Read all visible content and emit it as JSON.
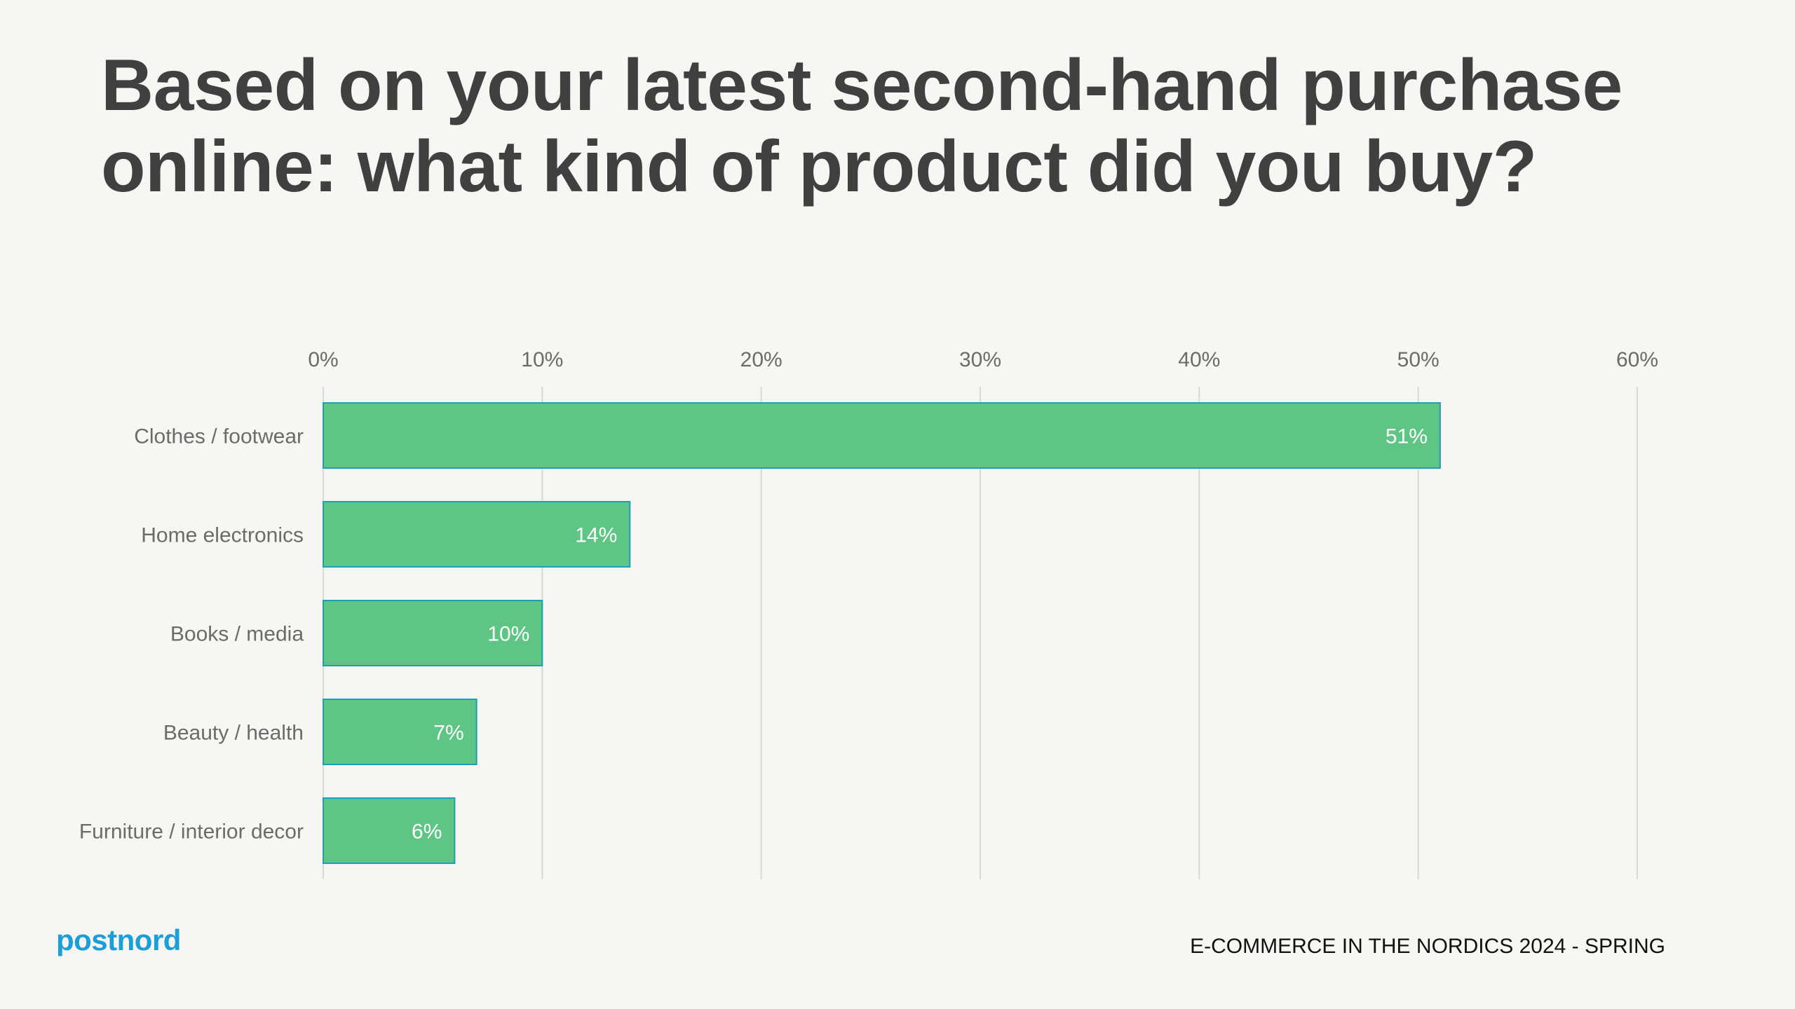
{
  "slide": {
    "title": "Based on your latest second-hand purchase online: what kind of product did you buy?"
  },
  "footer": {
    "brand": "postnord",
    "report": "E-COMMERCE IN THE NORDICS 2024 - SPRING"
  },
  "colors": {
    "bar_fill": "#5EC584",
    "bar_stroke": "#1A9FB5",
    "gridline": "#D9D9D9",
    "axis_text": "#6B6B6B",
    "label_text": "#FFFFFF",
    "brand": "#1A9FD9"
  },
  "chart_data": {
    "type": "bar",
    "orientation": "horizontal",
    "categories": [
      "Clothes / footwear",
      "Home electronics",
      "Books / media",
      "Beauty / health",
      "Furniture / interior decor"
    ],
    "values": [
      51,
      14,
      10,
      7,
      6
    ],
    "data_labels": [
      "51%",
      "14%",
      "10%",
      "7%",
      "6%"
    ],
    "xlim": [
      0,
      60
    ],
    "xticks": [
      0,
      10,
      20,
      30,
      40,
      50,
      60
    ],
    "xtick_labels": [
      "0%",
      "10%",
      "20%",
      "30%",
      "40%",
      "50%",
      "60%"
    ],
    "x_axis_position": "top",
    "grid": true,
    "legend": false
  }
}
